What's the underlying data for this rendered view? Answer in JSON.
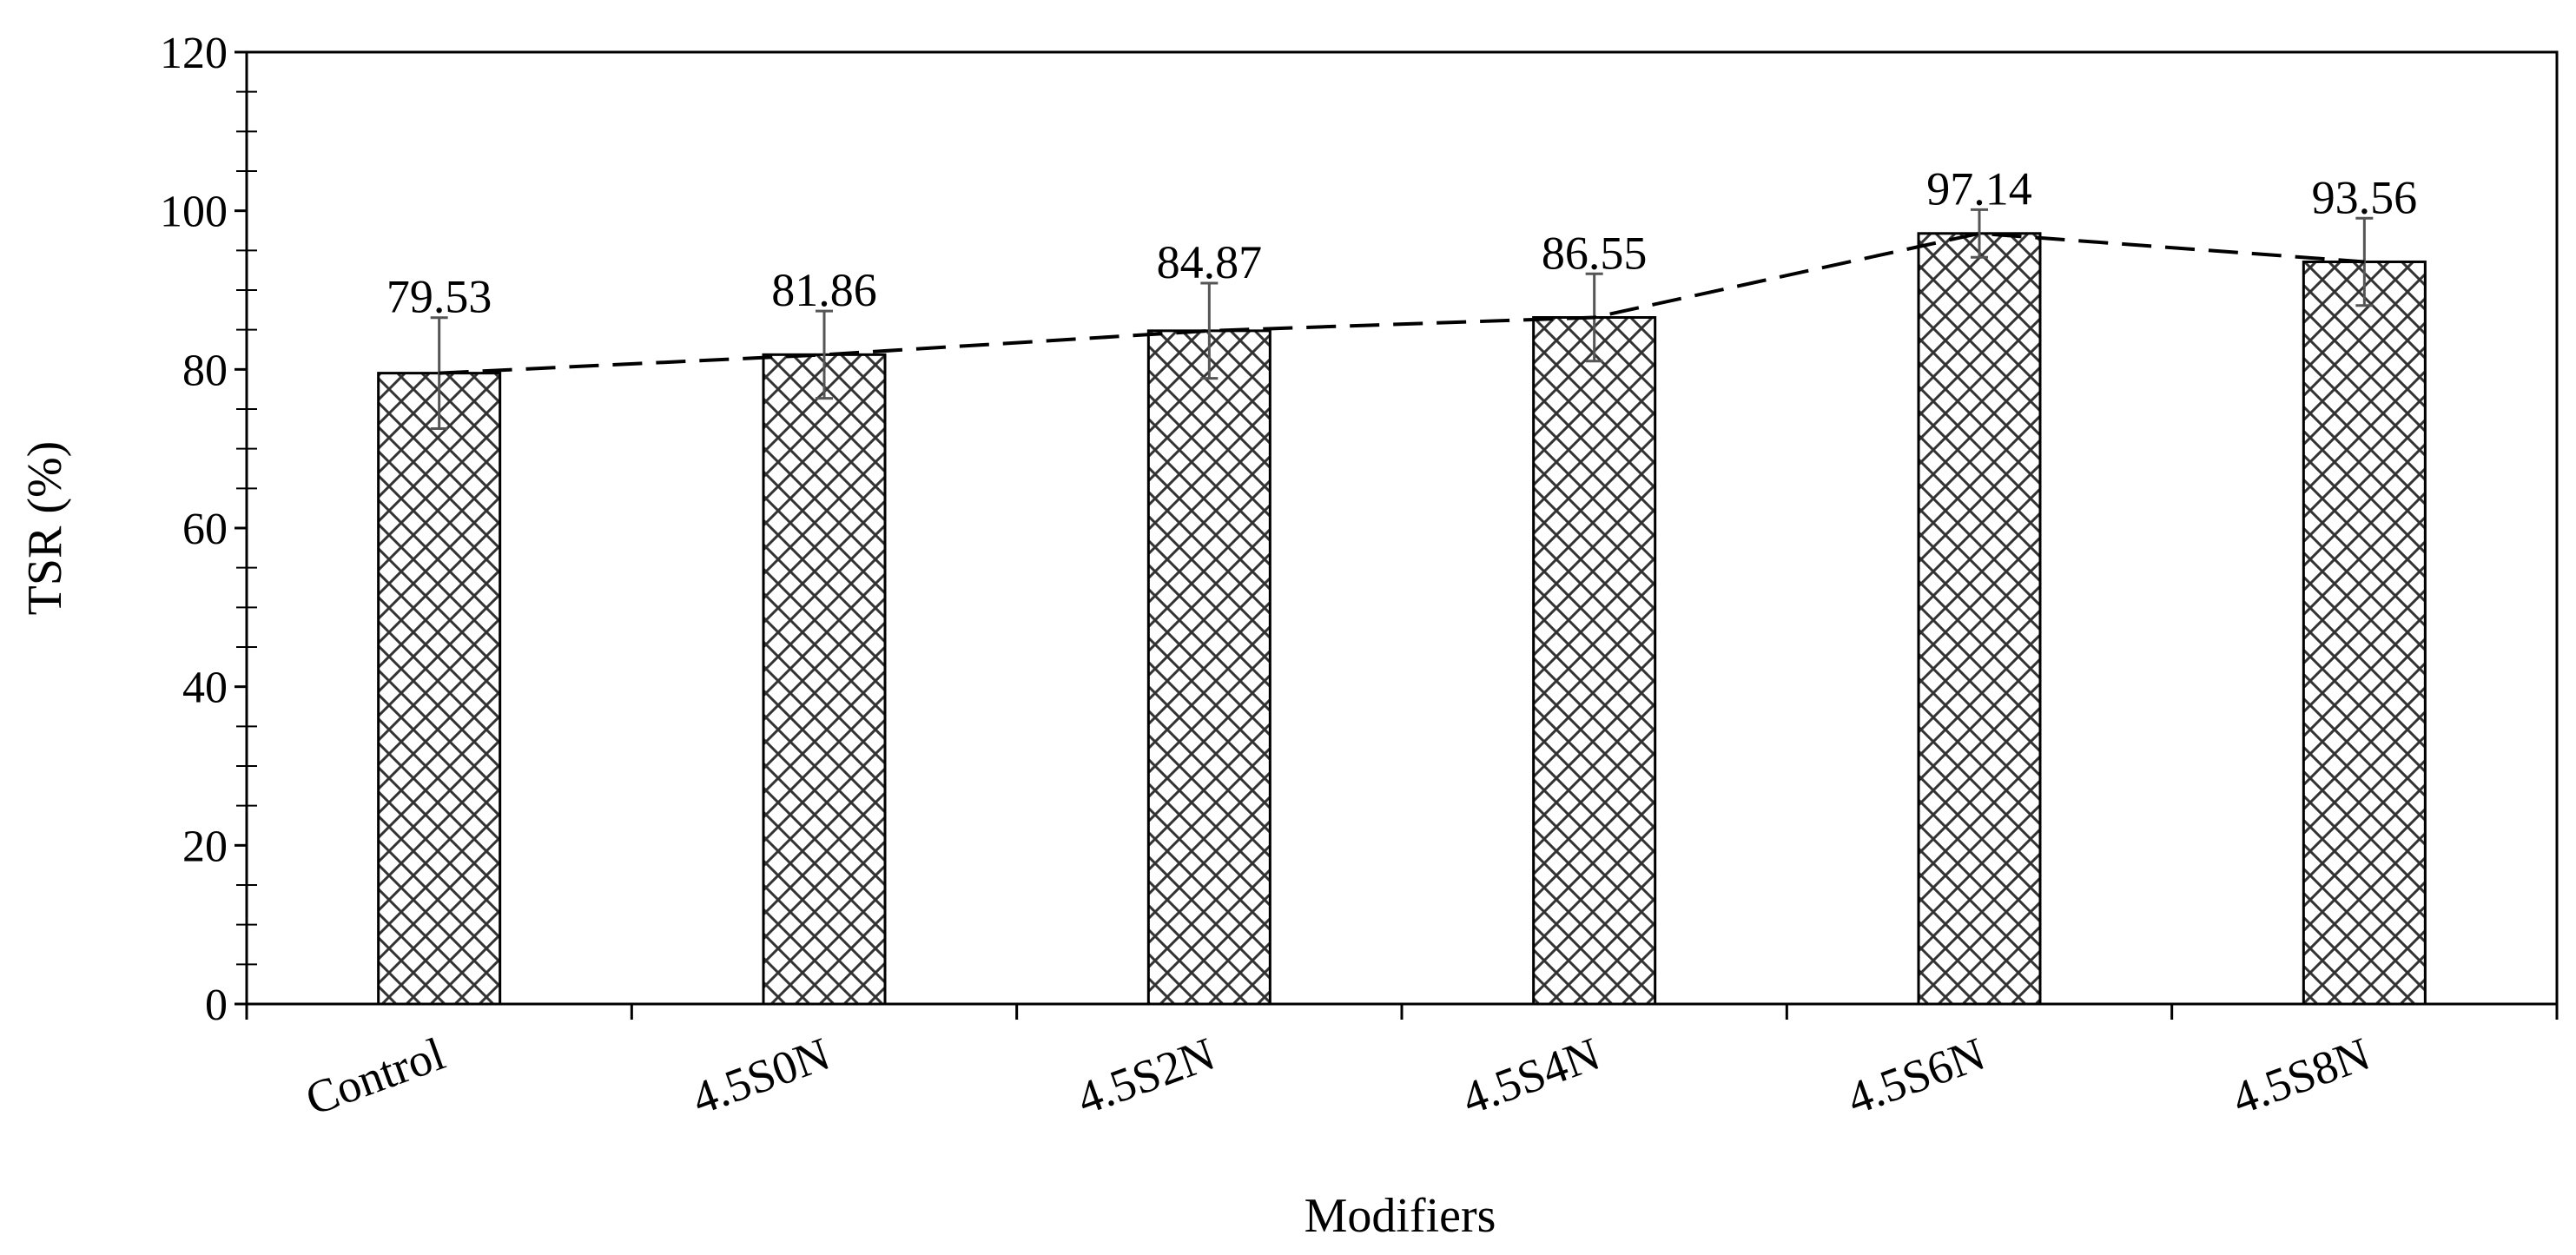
{
  "chart_data": {
    "type": "bar",
    "title": "",
    "xlabel": "Modifiers",
    "ylabel": "TSR (%)",
    "ylim": [
      0,
      120
    ],
    "yticks": [
      0,
      20,
      40,
      60,
      80,
      100,
      120
    ],
    "grid": false,
    "legend": "none",
    "bar_fill": "cross-hatch",
    "categories": [
      "Control",
      "4.5S0N",
      "4.5S2N",
      "4.5S4N",
      "4.5S6N",
      "4.5S8N"
    ],
    "values": [
      79.53,
      81.86,
      84.87,
      86.55,
      97.14,
      93.56
    ],
    "data_labels": [
      "79.53",
      "81.86",
      "84.87",
      "86.55",
      "97.14",
      "93.56"
    ],
    "error": [
      7,
      5.5,
      6,
      5.5,
      3,
      5.5
    ],
    "trend_line": "dashed",
    "colors": {
      "axis": "#000000",
      "bar_border": "#000000",
      "hatch": "#333333"
    }
  }
}
